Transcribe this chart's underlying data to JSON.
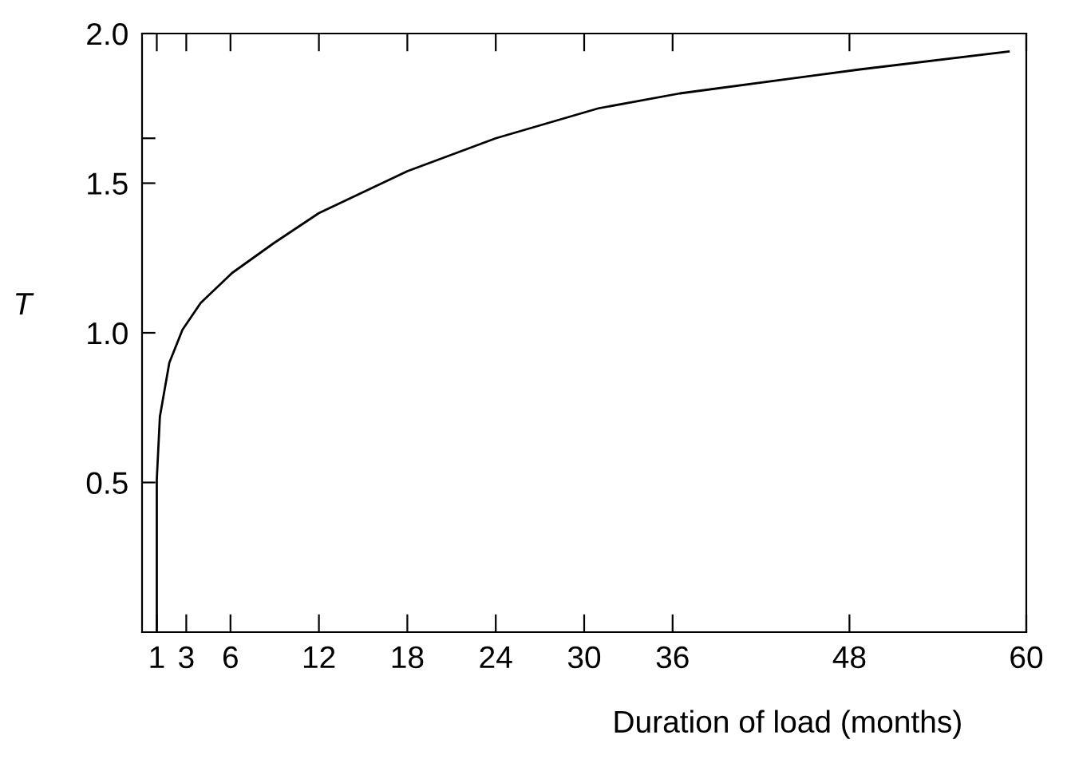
{
  "chart_data": {
    "type": "line",
    "xlabel": "Duration of load (months)",
    "ylabel": "T",
    "series": [
      {
        "color": "#000000",
        "x": [
          1.0,
          1.0,
          1.21,
          1.85,
          2.74,
          3.98,
          6.11,
          8.95,
          12.0,
          18.0,
          24.0,
          30.96,
          36.5,
          48.7,
          58.8
        ],
        "values": [
          0,
          0.51,
          0.72,
          0.9,
          1.01,
          1.1,
          1.2,
          1.3,
          1.4,
          1.54,
          1.65,
          1.75,
          1.8,
          1.88,
          1.94
        ]
      }
    ],
    "xlim": [
      0,
      60
    ],
    "xticks": [
      1,
      3,
      6,
      12,
      18,
      24,
      30,
      36,
      48,
      60
    ],
    "ylim": [
      0,
      2
    ],
    "yticks": [
      {
        "value": 0.5,
        "label": "0.5"
      },
      {
        "value": 1,
        "label": "1.0"
      },
      {
        "value": 1.5,
        "label": "1.5"
      },
      {
        "value": 1.65,
        "label": null
      },
      {
        "value": 2,
        "label": "2.0"
      }
    ],
    "grid": false,
    "legend": false,
    "marker": "none",
    "line_style": "solid"
  }
}
